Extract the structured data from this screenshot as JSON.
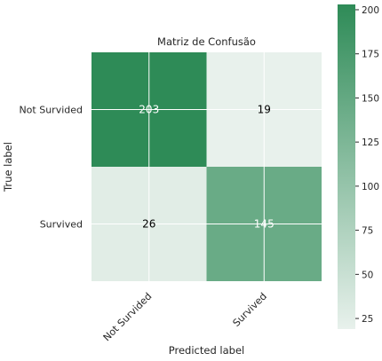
{
  "chart_data": {
    "type": "heatmap",
    "title": "Matriz de Confusão",
    "xlabel": "Predicted label",
    "ylabel": "True label",
    "x_categories": [
      "Not Survided",
      "Survived"
    ],
    "y_categories": [
      "Not Survided",
      "Survived"
    ],
    "values": [
      [
        203,
        19
      ],
      [
        26,
        145
      ]
    ],
    "colorbar": {
      "ticks": [
        25,
        50,
        75,
        100,
        125,
        150,
        175,
        200
      ],
      "range": [
        19,
        203
      ]
    },
    "colors": {
      "high": "#2e8b57",
      "low": "#e8f1ec",
      "text_dark": "#000000",
      "text_light": "#ffffff",
      "grid": "#ffffff"
    },
    "grid": true
  }
}
